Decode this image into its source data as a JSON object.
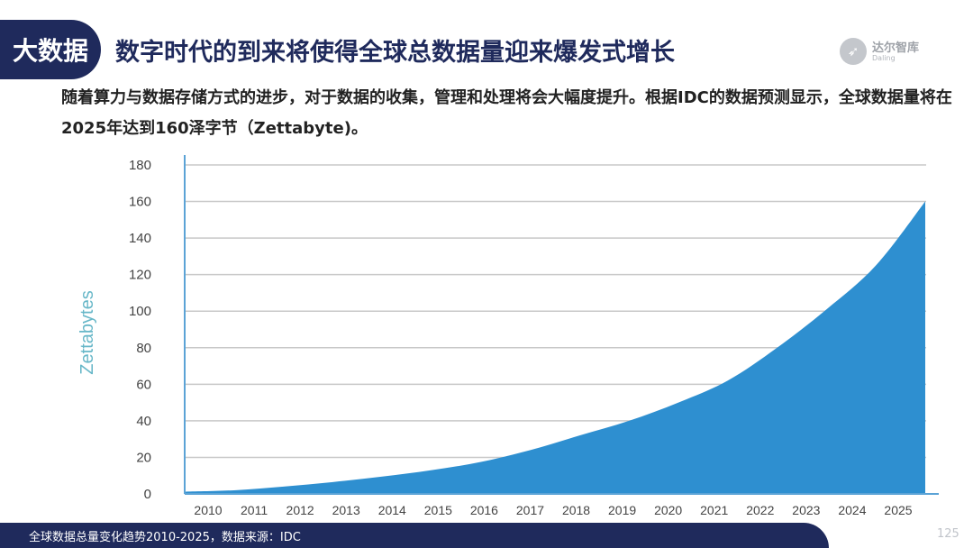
{
  "header": {
    "tag": "大数据",
    "title": "数字时代的到来将使得全球总数据量迎来爆发式增长"
  },
  "logo": {
    "name": "达尔智库",
    "subtitle": "Daling",
    "icon": "rocket-icon"
  },
  "intro": "随着算力与数据存储方式的进步，对于数据的收集，管理和处理将会大幅度提升。根据IDC的数据预测显示，全球数据量将在2025年达到160泽字节（Zettabyte)。",
  "footer": {
    "caption": "全球数据总量变化趋势2010-2025，数据来源：IDC",
    "page_number": "125"
  },
  "colors": {
    "navy": "#1f2a5c",
    "area_fill": "#2e8fd0",
    "axis": "#5ba3d6",
    "grid": "#c8c8c8",
    "ylabel": "#67b7c8"
  },
  "chart_data": {
    "type": "area",
    "x": [
      "2010",
      "2011",
      "2012",
      "2013",
      "2014",
      "2015",
      "2016",
      "2017",
      "2018",
      "2019",
      "2020",
      "2021",
      "2022",
      "2023",
      "2024",
      "2025"
    ],
    "series": [
      {
        "values": [
          1.2,
          2.0,
          4.0,
          6.5,
          9.5,
          13.0,
          17.5,
          24.0,
          32.0,
          40.0,
          50.0,
          62.0,
          80.0,
          101.0,
          125.0,
          160.0
        ]
      }
    ],
    "xlabel": "",
    "ylabel": "Zettabytes",
    "yticks": [
      "0",
      "20",
      "40",
      "60",
      "80",
      "100",
      "120",
      "140",
      "160",
      "180"
    ],
    "ylim": [
      0,
      180
    ],
    "grid": true,
    "legend": "none"
  }
}
